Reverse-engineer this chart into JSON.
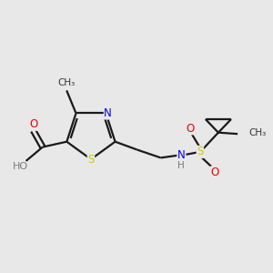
{
  "background_color": "#e8e8e8",
  "bond_color": "#1a1a1a",
  "atom_colors": {
    "C": "#1a1a1a",
    "H": "#7a7a7a",
    "N": "#0000ee",
    "O": "#ee0000",
    "S_ring": "#cccc00",
    "S_sulfonyl": "#cccc00"
  },
  "figsize": [
    3.0,
    3.0
  ],
  "dpi": 100,
  "xlim": [
    0,
    10
  ],
  "ylim": [
    0,
    10
  ]
}
